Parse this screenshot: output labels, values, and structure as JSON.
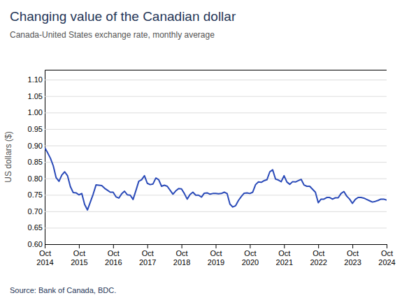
{
  "chart_data": {
    "type": "line",
    "title": "Changing value of the Canadian dollar",
    "subtitle": "Canada-United States exchange rate, monthly average",
    "ylabel": "US dollars ($)",
    "source": "Source: Bank of Canada, BDC.",
    "color": "#2a4ab8",
    "grid": true,
    "ylim": [
      0.6,
      1.13
    ],
    "yticks": [
      {
        "value": 0.6,
        "label": "0.60"
      },
      {
        "value": 0.65,
        "label": "0.65"
      },
      {
        "value": 0.7,
        "label": "0.70"
      },
      {
        "value": 0.75,
        "label": "0.75"
      },
      {
        "value": 0.8,
        "label": "0.80"
      },
      {
        "value": 0.85,
        "label": "0.85"
      },
      {
        "value": 0.9,
        "label": "0.90"
      },
      {
        "value": 0.95,
        "label": "0.95"
      },
      {
        "value": 1.0,
        "label": "1.00"
      },
      {
        "value": 1.05,
        "label": "1.05"
      },
      {
        "value": 1.1,
        "label": "1.10"
      }
    ],
    "categories": [
      "Oct\n2014",
      null,
      null,
      null,
      null,
      null,
      null,
      null,
      null,
      null,
      null,
      null,
      "Oct\n2015",
      null,
      null,
      null,
      null,
      null,
      null,
      null,
      null,
      null,
      null,
      null,
      "Oct\n2016",
      null,
      null,
      null,
      null,
      null,
      null,
      null,
      null,
      null,
      null,
      null,
      "Oct\n2017",
      null,
      null,
      null,
      null,
      null,
      null,
      null,
      null,
      null,
      null,
      null,
      "Oct\n2018",
      null,
      null,
      null,
      null,
      null,
      null,
      null,
      null,
      null,
      null,
      null,
      "Oct\n2019",
      null,
      null,
      null,
      null,
      null,
      null,
      null,
      null,
      null,
      null,
      null,
      "Oct\n2020",
      null,
      null,
      null,
      null,
      null,
      null,
      null,
      null,
      null,
      null,
      null,
      "Oct\n2021",
      null,
      null,
      null,
      null,
      null,
      null,
      null,
      null,
      null,
      null,
      null,
      "Oct\n2022",
      null,
      null,
      null,
      null,
      null,
      null,
      null,
      null,
      null,
      null,
      null,
      "Oct\n2023",
      null,
      null,
      null,
      null,
      null,
      null,
      null,
      null,
      null,
      null,
      null,
      "Oct\n2024"
    ],
    "values": [
      0.893,
      0.878,
      0.861,
      0.838,
      0.802,
      0.791,
      0.81,
      0.82,
      0.808,
      0.775,
      0.757,
      0.756,
      0.75,
      0.754,
      0.721,
      0.704,
      0.728,
      0.752,
      0.78,
      0.779,
      0.778,
      0.77,
      0.764,
      0.758,
      0.758,
      0.744,
      0.74,
      0.753,
      0.761,
      0.75,
      0.749,
      0.736,
      0.763,
      0.791,
      0.796,
      0.808,
      0.785,
      0.781,
      0.783,
      0.801,
      0.796,
      0.776,
      0.779,
      0.776,
      0.764,
      0.752,
      0.762,
      0.769,
      0.768,
      0.754,
      0.737,
      0.751,
      0.758,
      0.749,
      0.749,
      0.743,
      0.755,
      0.756,
      0.752,
      0.754,
      0.754,
      0.753,
      0.754,
      0.758,
      0.754,
      0.722,
      0.713,
      0.717,
      0.733,
      0.745,
      0.755,
      0.756,
      0.754,
      0.758,
      0.781,
      0.789,
      0.788,
      0.793,
      0.796,
      0.82,
      0.826,
      0.798,
      0.795,
      0.79,
      0.808,
      0.789,
      0.782,
      0.79,
      0.789,
      0.793,
      0.797,
      0.78,
      0.776,
      0.776,
      0.767,
      0.758,
      0.726,
      0.737,
      0.737,
      0.742,
      0.742,
      0.737,
      0.741,
      0.741,
      0.754,
      0.76,
      0.746,
      0.737,
      0.724,
      0.736,
      0.742,
      0.742,
      0.74,
      0.736,
      0.732,
      0.728,
      0.73,
      0.733,
      0.737,
      0.737,
      0.734
    ]
  }
}
